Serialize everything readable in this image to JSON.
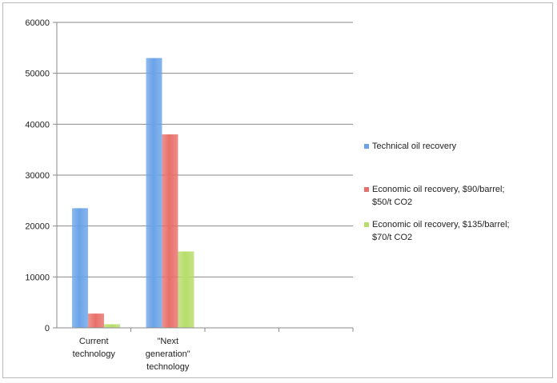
{
  "chart_data": {
    "type": "bar",
    "categories": [
      [
        "Current",
        "technology"
      ],
      [
        "\"Next",
        "generation\"",
        "technology"
      ],
      [
        ""
      ],
      [
        ""
      ]
    ],
    "series": [
      {
        "name": [
          "Technical oil recovery"
        ],
        "color": "#6aa3e8",
        "values": [
          23500,
          53000,
          null,
          null
        ]
      },
      {
        "name": [
          "Economic oil recovery, $90/barrel;",
          "$50/t CO2"
        ],
        "color": "#e8706a",
        "values": [
          2800,
          38000,
          null,
          null
        ]
      },
      {
        "name": [
          "Economic oil recovery, $135/barrel;",
          "$70/t CO2"
        ],
        "color": "#b7dd6a",
        "values": [
          700,
          15000,
          null,
          null
        ]
      }
    ],
    "yticks": [
      "0",
      "10000",
      "20000",
      "30000",
      "40000",
      "50000",
      "60000"
    ],
    "ylim": [
      0,
      60000
    ],
    "grid": true,
    "legend": "right"
  }
}
